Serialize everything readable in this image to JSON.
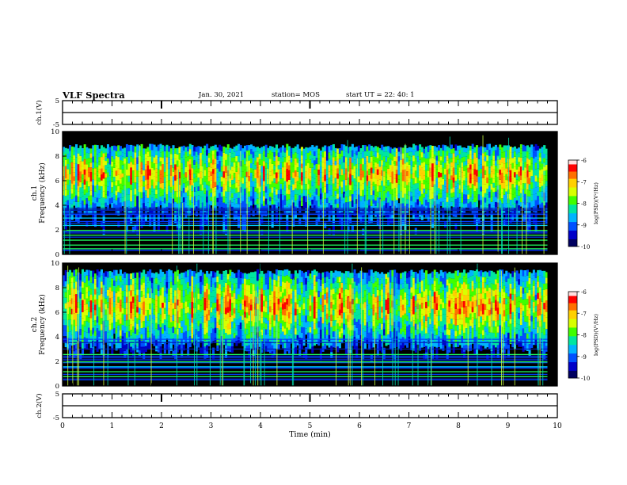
{
  "header": {
    "title": "VLF Spectra",
    "date": "Jan. 30, 2021",
    "station": "station= MOS",
    "start": "start  UT =   22: 40: 1"
  },
  "chart_data": [
    {
      "type": "line",
      "name": "ch.1 waveform",
      "ylabel": "ch.1(V)",
      "ylim": [
        -5,
        5
      ],
      "yticks": [
        "5",
        "-5"
      ],
      "xlim": [
        0,
        10
      ],
      "x": [
        0,
        10
      ],
      "y": [
        0,
        0
      ]
    },
    {
      "type": "heatmap",
      "name": "ch.1 spectrogram",
      "ylabel": "ch.1\nFrequency (kHz)",
      "ylim": [
        0,
        10
      ],
      "yticks": [
        "0",
        "2",
        "4",
        "6",
        "8",
        "10"
      ],
      "xlim": [
        0,
        10
      ],
      "data_end_min": 9.8,
      "colorbar": {
        "label": "log(PSD)(V²/Hz)",
        "range": [
          -10,
          -6
        ],
        "ticks": [
          "-6",
          "-7",
          "-8",
          "-9",
          "-10"
        ],
        "colors": [
          "#ffffff",
          "#ff0000",
          "#ffaa00",
          "#ffff00",
          "#00ff00",
          "#00ccff",
          "#0000ff",
          "#000066"
        ]
      },
      "emission_band_khz": [
        4,
        9
      ],
      "hum_lines_khz": [
        0.5,
        0.8,
        1.2,
        1.6,
        2.0,
        2.4,
        3.0
      ]
    },
    {
      "type": "heatmap",
      "name": "ch.2 spectrogram",
      "ylabel": "ch.2\nFrequency (kHz)",
      "ylim": [
        0,
        10
      ],
      "yticks": [
        "0",
        "2",
        "4",
        "6",
        "8",
        "10"
      ],
      "xlim": [
        0,
        10
      ],
      "data_end_min": 9.8,
      "colorbar": {
        "label": "log(PSD)(V²/Hz)",
        "range": [
          -10,
          -6
        ],
        "ticks": [
          "-6",
          "-7",
          "-8",
          "-9",
          "-10"
        ],
        "colors": [
          "#ffffff",
          "#ff0000",
          "#ffaa00",
          "#ffff00",
          "#00ff00",
          "#00ccff",
          "#0000ff",
          "#000066"
        ]
      },
      "emission_band_khz": [
        3.5,
        9.5
      ],
      "hum_lines_khz": [
        0.8,
        1.2,
        1.6,
        2.0,
        2.6
      ]
    },
    {
      "type": "line",
      "name": "ch.2 waveform",
      "ylabel": "ch.2(V)",
      "ylim": [
        -5,
        5
      ],
      "yticks": [
        "5",
        "-5"
      ],
      "xlim": [
        0,
        10
      ],
      "x": [
        0,
        10
      ],
      "y": [
        0,
        0
      ]
    }
  ],
  "xaxis": {
    "label": "Time (min)",
    "range": [
      0,
      10
    ],
    "ticks": [
      "0",
      "1",
      "2",
      "3",
      "4",
      "5",
      "6",
      "7",
      "8",
      "9",
      "10"
    ]
  }
}
